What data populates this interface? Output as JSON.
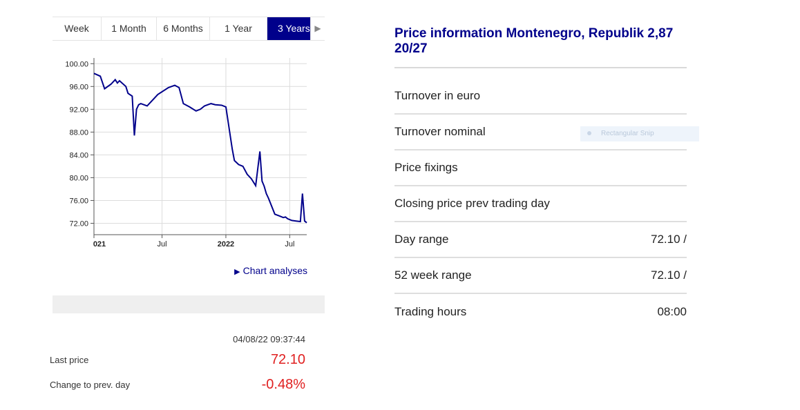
{
  "tabs": [
    {
      "label": "Week",
      "active": false
    },
    {
      "label": "1 Month",
      "active": false
    },
    {
      "label": "6 Months",
      "active": false
    },
    {
      "label": "1 Year",
      "active": false
    },
    {
      "label": "3 Years",
      "active": true
    }
  ],
  "tab_scroll_icon": "triangle-right-icon",
  "chart_analyses_label": "Chart analyses",
  "timestamp": "04/08/22 09:37:44",
  "last_price": {
    "label": "Last price",
    "value": "72.10"
  },
  "change": {
    "label": "Change to prev. day",
    "value": "-0.48%"
  },
  "right": {
    "title": "Price information Montenegro, Republik 2,87 20/27",
    "rows": [
      {
        "label": "Turnover in euro",
        "value": ""
      },
      {
        "label": "Turnover nominal",
        "value": ""
      },
      {
        "label": "Price fixings",
        "value": ""
      },
      {
        "label": "Closing price prev trading day",
        "value": ""
      },
      {
        "label": "Day range",
        "value": "72.10 /"
      },
      {
        "label": "52 week range",
        "value": "72.10 /"
      },
      {
        "label": "Trading hours",
        "value": "08:00"
      }
    ],
    "snip_label": "Rectangular Snip"
  },
  "colors": {
    "accent": "#00008b",
    "negative": "#e02020",
    "line": "#00008b"
  },
  "chart_data": {
    "type": "line",
    "x_tick_labels": [
      "021",
      "Jul",
      "2022",
      "Jul"
    ],
    "y_ticks": [
      72,
      76,
      80,
      84,
      88,
      92,
      96,
      100
    ],
    "y_tick_labels": [
      "72.00",
      "76.00",
      "80.00",
      "84.00",
      "88.00",
      "92.00",
      "96.00",
      "100.00"
    ],
    "ylim": [
      70,
      101
    ],
    "grid": true,
    "series": [
      {
        "x": [
          0,
          0.03,
          0.05,
          0.08,
          0.1,
          0.11,
          0.12,
          0.15,
          0.16,
          0.18,
          0.19,
          0.2,
          0.21,
          0.22,
          0.25,
          0.3,
          0.35,
          0.38,
          0.4,
          0.42,
          0.45,
          0.48,
          0.5,
          0.52,
          0.55,
          0.57,
          0.6,
          0.62,
          0.65,
          0.66,
          0.68,
          0.7,
          0.72,
          0.74,
          0.76,
          0.78,
          0.79,
          0.8,
          0.81,
          0.82,
          0.85,
          0.87,
          0.89,
          0.9,
          0.91,
          0.93,
          0.95,
          0.97,
          0.98,
          0.99,
          1.0
        ],
        "y": [
          98.3,
          97.8,
          95.6,
          96.4,
          97.2,
          96.6,
          97.0,
          96.0,
          94.8,
          94.3,
          87.4,
          92.0,
          92.8,
          93.0,
          92.6,
          94.6,
          95.8,
          96.2,
          95.8,
          93.0,
          92.4,
          91.7,
          92.0,
          92.6,
          93.0,
          92.8,
          92.7,
          92.4,
          85.0,
          83.0,
          82.3,
          82.0,
          80.6,
          79.8,
          78.6,
          84.6,
          79.4,
          78.5,
          77.2,
          76.4,
          73.6,
          73.3,
          73.0,
          73.1,
          72.8,
          72.5,
          72.4,
          72.3,
          77.2,
          72.4,
          72.1
        ]
      }
    ]
  }
}
